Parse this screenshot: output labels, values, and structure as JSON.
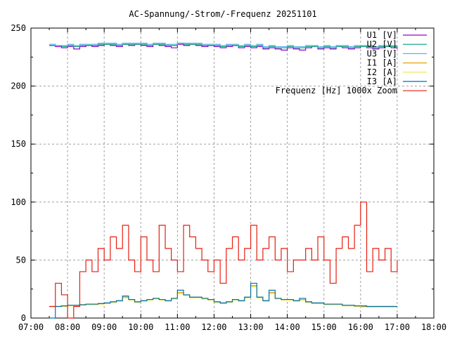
{
  "chart_data": {
    "type": "line",
    "title": "AC-Spannung/-Strom/-Frequenz 20251101",
    "xlabel": "",
    "ylabel": "",
    "xlim": [
      7,
      18
    ],
    "ylim": [
      0,
      250
    ],
    "grid": true,
    "legend_position": "top-right",
    "x_tick_labels": [
      "07:00",
      "08:00",
      "09:00",
      "10:00",
      "11:00",
      "12:00",
      "13:00",
      "14:00",
      "15:00",
      "16:00",
      "17:00",
      "18:00"
    ],
    "y_tick_labels": [
      "0",
      "50",
      "100",
      "150",
      "200",
      "250"
    ],
    "x": [
      7.5,
      7.667,
      7.833,
      8,
      8.167,
      8.333,
      8.5,
      8.667,
      8.833,
      9,
      9.167,
      9.333,
      9.5,
      9.667,
      9.833,
      10,
      10.167,
      10.333,
      10.5,
      10.667,
      10.833,
      11,
      11.167,
      11.333,
      11.5,
      11.667,
      11.833,
      12,
      12.167,
      12.333,
      12.5,
      12.667,
      12.833,
      13,
      13.167,
      13.333,
      13.5,
      13.667,
      13.833,
      14,
      14.167,
      14.333,
      14.5,
      14.667,
      14.833,
      15,
      15.167,
      15.333,
      15.5,
      15.667,
      15.833,
      16,
      16.167,
      16.333,
      16.5,
      16.667,
      16.833,
      17
    ],
    "series": [
      {
        "name": "U1 [V]",
        "color": "#9400d3",
        "values": [
          235,
          234,
          233,
          234,
          232,
          234,
          235,
          234,
          235,
          236,
          235,
          234,
          236,
          235,
          236,
          235,
          234,
          236,
          235,
          234,
          233,
          236,
          235,
          236,
          235,
          234,
          235,
          234,
          233,
          234,
          235,
          233,
          234,
          233,
          234,
          232,
          233,
          232,
          231,
          233,
          232,
          231,
          233,
          234,
          232,
          233,
          232,
          234,
          233,
          232,
          233,
          234,
          233,
          232,
          233,
          234,
          233,
          232
        ]
      },
      {
        "name": "U2 [V]",
        "color": "#009e73",
        "values": [
          235,
          235,
          234,
          235,
          234,
          235,
          235,
          235,
          236,
          236,
          236,
          235,
          236,
          236,
          236,
          236,
          235,
          236,
          236,
          235,
          235,
          237,
          236,
          236,
          236,
          235,
          235,
          235,
          234,
          235,
          235,
          234,
          235,
          234,
          235,
          233,
          234,
          233,
          233,
          234,
          233,
          233,
          234,
          234,
          233,
          234,
          233,
          234,
          234,
          233,
          234,
          234,
          234,
          233,
          234,
          234,
          234,
          233
        ]
      },
      {
        "name": "U3 [V]",
        "color": "#56b4e9",
        "values": [
          236,
          235,
          235,
          236,
          235,
          236,
          236,
          236,
          237,
          237,
          237,
          236,
          237,
          237,
          237,
          237,
          236,
          237,
          237,
          236,
          236,
          237,
          237,
          237,
          237,
          236,
          236,
          236,
          235,
          236,
          236,
          235,
          236,
          235,
          236,
          234,
          235,
          234,
          234,
          235,
          234,
          234,
          235,
          235,
          234,
          235,
          234,
          235,
          235,
          234,
          235,
          235,
          235,
          234,
          235,
          235,
          235,
          234
        ]
      },
      {
        "name": "I1 [A]",
        "color": "#e69f00",
        "values": [
          10,
          10,
          10.5,
          11,
          11,
          11.5,
          12,
          12,
          12.5,
          13,
          14,
          15,
          18,
          16,
          14,
          15,
          16,
          17,
          16,
          15,
          17,
          22,
          20,
          18,
          18,
          17,
          16,
          14,
          13,
          14,
          16,
          15,
          18,
          28,
          18,
          15,
          22,
          17,
          16,
          16,
          15,
          16,
          14,
          13,
          13,
          12,
          12,
          12,
          11,
          11,
          10.5,
          10,
          10,
          10,
          10,
          10,
          10,
          10
        ]
      },
      {
        "name": "I2 [A]",
        "color": "#f0e442",
        "values": [
          10,
          10,
          10,
          10.5,
          10.5,
          11,
          11.5,
          11.5,
          12,
          12.5,
          13.5,
          14.5,
          17.5,
          15.5,
          13.5,
          14.5,
          15.5,
          16.5,
          15.5,
          14.5,
          16.5,
          21,
          19.5,
          17.5,
          17.5,
          16.5,
          15.5,
          13.5,
          12.5,
          13.5,
          15.5,
          14.5,
          17.5,
          27,
          17.5,
          14.5,
          21,
          16.5,
          15.5,
          15.5,
          14.5,
          15.5,
          13.5,
          12.5,
          12.5,
          11.5,
          11.5,
          11.5,
          10.5,
          10.5,
          10,
          9.5,
          9.5,
          9.5,
          9.5,
          9.5,
          9.5,
          9.5
        ]
      },
      {
        "name": "I3 [A]",
        "color": "#0072b2",
        "values": [
          0,
          10,
          10.5,
          11,
          11,
          11.5,
          12,
          12,
          12.5,
          13,
          14,
          15,
          19,
          16,
          14,
          15,
          16,
          17,
          16,
          15,
          17,
          24,
          20,
          18,
          18,
          17,
          16,
          14,
          13,
          14,
          16,
          15,
          18,
          30,
          18,
          15,
          24,
          17,
          16,
          16,
          15,
          17,
          14,
          13,
          13,
          12,
          12,
          12,
          11,
          11,
          10.5,
          10.5,
          10,
          10,
          10,
          10,
          10,
          10
        ]
      },
      {
        "name": "Frequenz [Hz] 1000x Zoom",
        "color": "#e51e10",
        "values": [
          10,
          30,
          20,
          0,
          10,
          40,
          50,
          40,
          60,
          50,
          70,
          60,
          80,
          50,
          40,
          70,
          50,
          40,
          80,
          60,
          50,
          40,
          80,
          70,
          60,
          50,
          40,
          50,
          30,
          60,
          70,
          50,
          60,
          80,
          50,
          60,
          70,
          50,
          60,
          40,
          50,
          50,
          60,
          50,
          70,
          50,
          30,
          60,
          70,
          60,
          80,
          100,
          40,
          60,
          50,
          60,
          40,
          50
        ]
      }
    ]
  }
}
